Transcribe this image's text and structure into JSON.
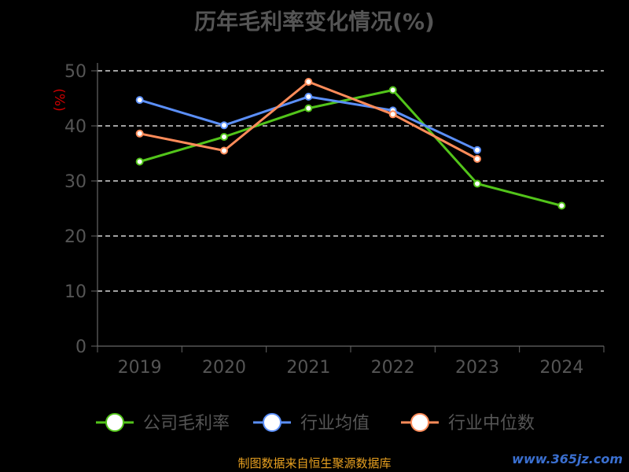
{
  "title": "历年毛利率变化情况(%)",
  "source_note": "制图数据来自恒生聚源数据库",
  "watermark": "www.365jz.com",
  "colors": {
    "background": "#000000",
    "axis": "#666666",
    "grid": "#ffffff",
    "tick_text": "#555555",
    "ylabel": "#cc0000",
    "title": "#555555",
    "source": "#e8a020"
  },
  "chart_data": {
    "type": "line",
    "title": "历年毛利率变化情况(%)",
    "ylabel": "(%)",
    "xlabel": "",
    "categories": [
      "2019",
      "2020",
      "2021",
      "2022",
      "2023",
      "2024"
    ],
    "ylim": [
      0,
      50
    ],
    "yticks": [
      0,
      10,
      20,
      30,
      40,
      50
    ],
    "grid": true,
    "legend_position": "bottom",
    "series": [
      {
        "name": "公司毛利率",
        "color": "#52c41a",
        "values": [
          33.5,
          38.0,
          43.2,
          46.5,
          29.5,
          25.5
        ]
      },
      {
        "name": "行业均值",
        "color": "#5b8ff9",
        "values": [
          44.7,
          40.1,
          45.3,
          42.8,
          35.6,
          null
        ]
      },
      {
        "name": "行业中位数",
        "color": "#ff8c5a",
        "values": [
          38.6,
          35.5,
          48.0,
          42.1,
          34.0,
          null
        ]
      }
    ]
  }
}
